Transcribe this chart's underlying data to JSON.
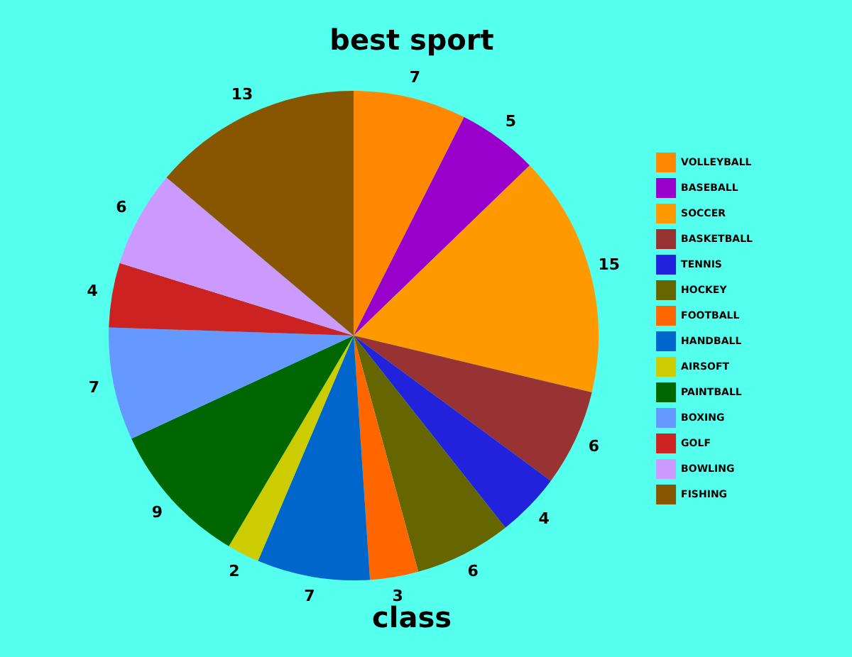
{
  "chart_data": {
    "type": "pie",
    "title": "best sport",
    "xlabel": "class",
    "categories": [
      "VOLLEYBALL",
      "BASEBALL",
      "SOCCER",
      "BASKETBALL",
      "TENNIS",
      "HOCKEY",
      "FOOTBALL",
      "HANDBALL",
      "AIRSOFT",
      "PAINTBALL",
      "BOXING",
      "GOLF",
      "BOWLING",
      "FISHING"
    ],
    "values": [
      7,
      5,
      15,
      6,
      4,
      6,
      3,
      7,
      2,
      9,
      7,
      4,
      6,
      13
    ],
    "colors": [
      "#ff8800",
      "#9900cc",
      "#ff9900",
      "#993333",
      "#2222dd",
      "#666600",
      "#ff6600",
      "#0066cc",
      "#cccc00",
      "#006600",
      "#6699ff",
      "#cc2222",
      "#cc99ff",
      "#885500"
    ],
    "data_labels": true,
    "legend": "right"
  }
}
